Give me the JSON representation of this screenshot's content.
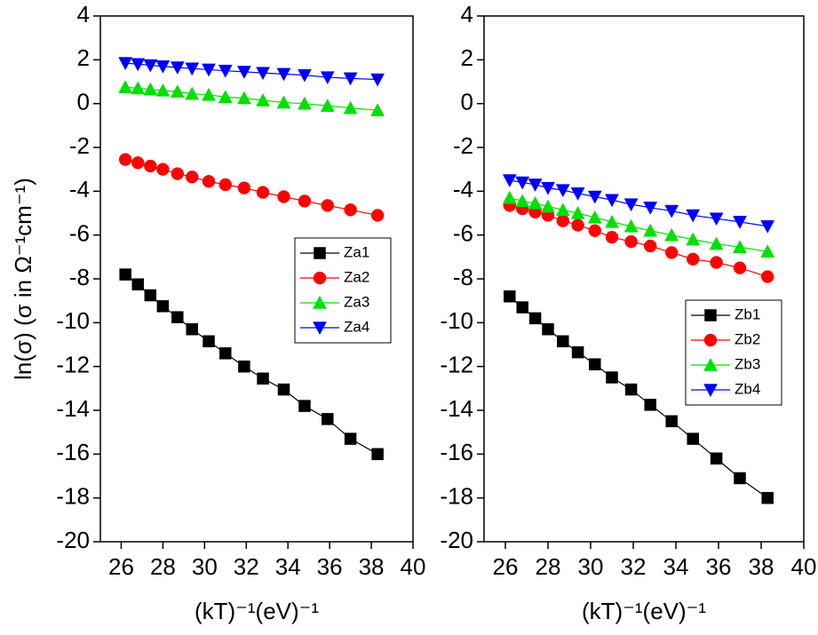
{
  "chart_data": [
    {
      "type": "line",
      "ylabel": "ln(σ) (σ in Ω⁻¹cm⁻¹)",
      "xlabel": "(kT)⁻¹(eV)⁻¹",
      "x": [
        26.2,
        26.8,
        27.4,
        28.0,
        28.7,
        29.4,
        30.2,
        31.0,
        31.9,
        32.8,
        33.8,
        34.8,
        35.9,
        37.0,
        38.3
      ],
      "xlim": [
        25,
        40
      ],
      "xticks": [
        26,
        28,
        30,
        32,
        34,
        36,
        38,
        40
      ],
      "ylim": [
        -20,
        4
      ],
      "yticks": [
        -20,
        -18,
        -16,
        -14,
        -12,
        -10,
        -8,
        -6,
        -4,
        -2,
        0,
        2,
        4
      ],
      "legend": "center right",
      "series": [
        {
          "name": "Za1",
          "color": "#000000",
          "marker": "square",
          "values": [
            -7.8,
            -8.25,
            -8.75,
            -9.25,
            -9.75,
            -10.3,
            -10.85,
            -11.4,
            -12.0,
            -12.55,
            -13.05,
            -13.8,
            -14.4,
            -15.3,
            -16.0
          ]
        },
        {
          "name": "Za2",
          "color": "#ff0000",
          "marker": "circle",
          "values": [
            -2.55,
            -2.7,
            -2.85,
            -3.0,
            -3.2,
            -3.35,
            -3.55,
            -3.7,
            -3.85,
            -4.05,
            -4.25,
            -4.45,
            -4.65,
            -4.85,
            -5.1
          ]
        },
        {
          "name": "Za3",
          "color": "#00e000",
          "marker": "triangle-up",
          "values": [
            0.75,
            0.7,
            0.65,
            0.6,
            0.55,
            0.45,
            0.4,
            0.3,
            0.25,
            0.15,
            0.05,
            0.0,
            -0.1,
            -0.2,
            -0.3
          ]
        },
        {
          "name": "Za4",
          "color": "#0000ff",
          "marker": "triangle-down",
          "values": [
            1.85,
            1.8,
            1.75,
            1.7,
            1.65,
            1.6,
            1.55,
            1.5,
            1.45,
            1.4,
            1.35,
            1.3,
            1.2,
            1.15,
            1.1
          ]
        }
      ]
    },
    {
      "type": "line",
      "xlabel": "(kT)⁻¹(eV)⁻¹",
      "x": [
        26.2,
        26.8,
        27.4,
        28.0,
        28.7,
        29.4,
        30.2,
        31.0,
        31.9,
        32.8,
        33.8,
        34.8,
        35.9,
        37.0,
        38.3
      ],
      "xlim": [
        25,
        40
      ],
      "xticks": [
        26,
        28,
        30,
        32,
        34,
        36,
        38,
        40
      ],
      "ylim": [
        -20,
        4
      ],
      "yticks": [
        -20,
        -18,
        -16,
        -14,
        -12,
        -10,
        -8,
        -6,
        -4,
        -2,
        0,
        2,
        4
      ],
      "legend": "lower right",
      "series": [
        {
          "name": "Zb1",
          "color": "#000000",
          "marker": "square",
          "values": [
            -8.8,
            -9.3,
            -9.8,
            -10.3,
            -10.85,
            -11.35,
            -11.9,
            -12.5,
            -13.05,
            -13.75,
            -14.5,
            -15.3,
            -16.2,
            -17.1,
            -18.0
          ]
        },
        {
          "name": "Zb2",
          "color": "#ff0000",
          "marker": "circle",
          "values": [
            -4.65,
            -4.8,
            -4.95,
            -5.1,
            -5.35,
            -5.55,
            -5.8,
            -6.1,
            -6.3,
            -6.5,
            -6.8,
            -7.1,
            -7.25,
            -7.5,
            -7.9
          ]
        },
        {
          "name": "Zb3",
          "color": "#00e000",
          "marker": "triangle-up",
          "values": [
            -4.3,
            -4.45,
            -4.55,
            -4.7,
            -4.85,
            -5.0,
            -5.2,
            -5.4,
            -5.6,
            -5.8,
            -6.0,
            -6.2,
            -6.4,
            -6.55,
            -6.75
          ]
        },
        {
          "name": "Zb4",
          "color": "#0000ff",
          "marker": "triangle-down",
          "values": [
            -3.5,
            -3.6,
            -3.7,
            -3.85,
            -3.95,
            -4.1,
            -4.25,
            -4.4,
            -4.6,
            -4.75,
            -4.9,
            -5.1,
            -5.25,
            -5.4,
            -5.6
          ]
        }
      ]
    }
  ]
}
